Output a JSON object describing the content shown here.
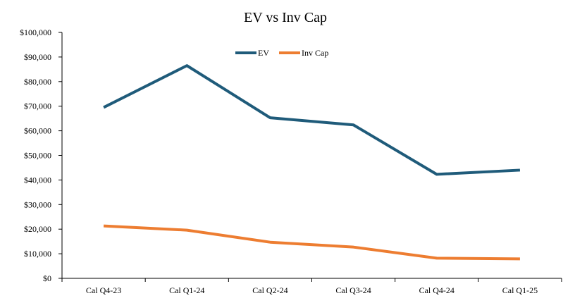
{
  "chart_data": {
    "type": "line",
    "title": "EV vs Inv Cap",
    "xlabel": "",
    "ylabel": "",
    "categories": [
      "Cal Q4-23",
      "Cal Q1-24",
      "Cal Q2-24",
      "Cal Q3-24",
      "Cal Q4-24",
      "Cal Q1-25"
    ],
    "ylim": [
      0,
      100000
    ],
    "yticks": [
      0,
      10000,
      20000,
      30000,
      40000,
      50000,
      60000,
      70000,
      80000,
      90000,
      100000
    ],
    "ytick_labels": [
      "$0",
      "$10,000",
      "$20,000",
      "$30,000",
      "$40,000",
      "$50,000",
      "$60,000",
      "$70,000",
      "$80,000",
      "$90,000",
      "$100,000"
    ],
    "grid": false,
    "legend_position": "top-center",
    "series": [
      {
        "name": "EV",
        "color": "#1f5b7a",
        "values": [
          69500,
          86500,
          65300,
          62400,
          42300,
          44000
        ]
      },
      {
        "name": "Inv Cap",
        "color": "#ed7d31",
        "values": [
          21300,
          19600,
          14700,
          12700,
          8200,
          7900
        ]
      }
    ]
  }
}
